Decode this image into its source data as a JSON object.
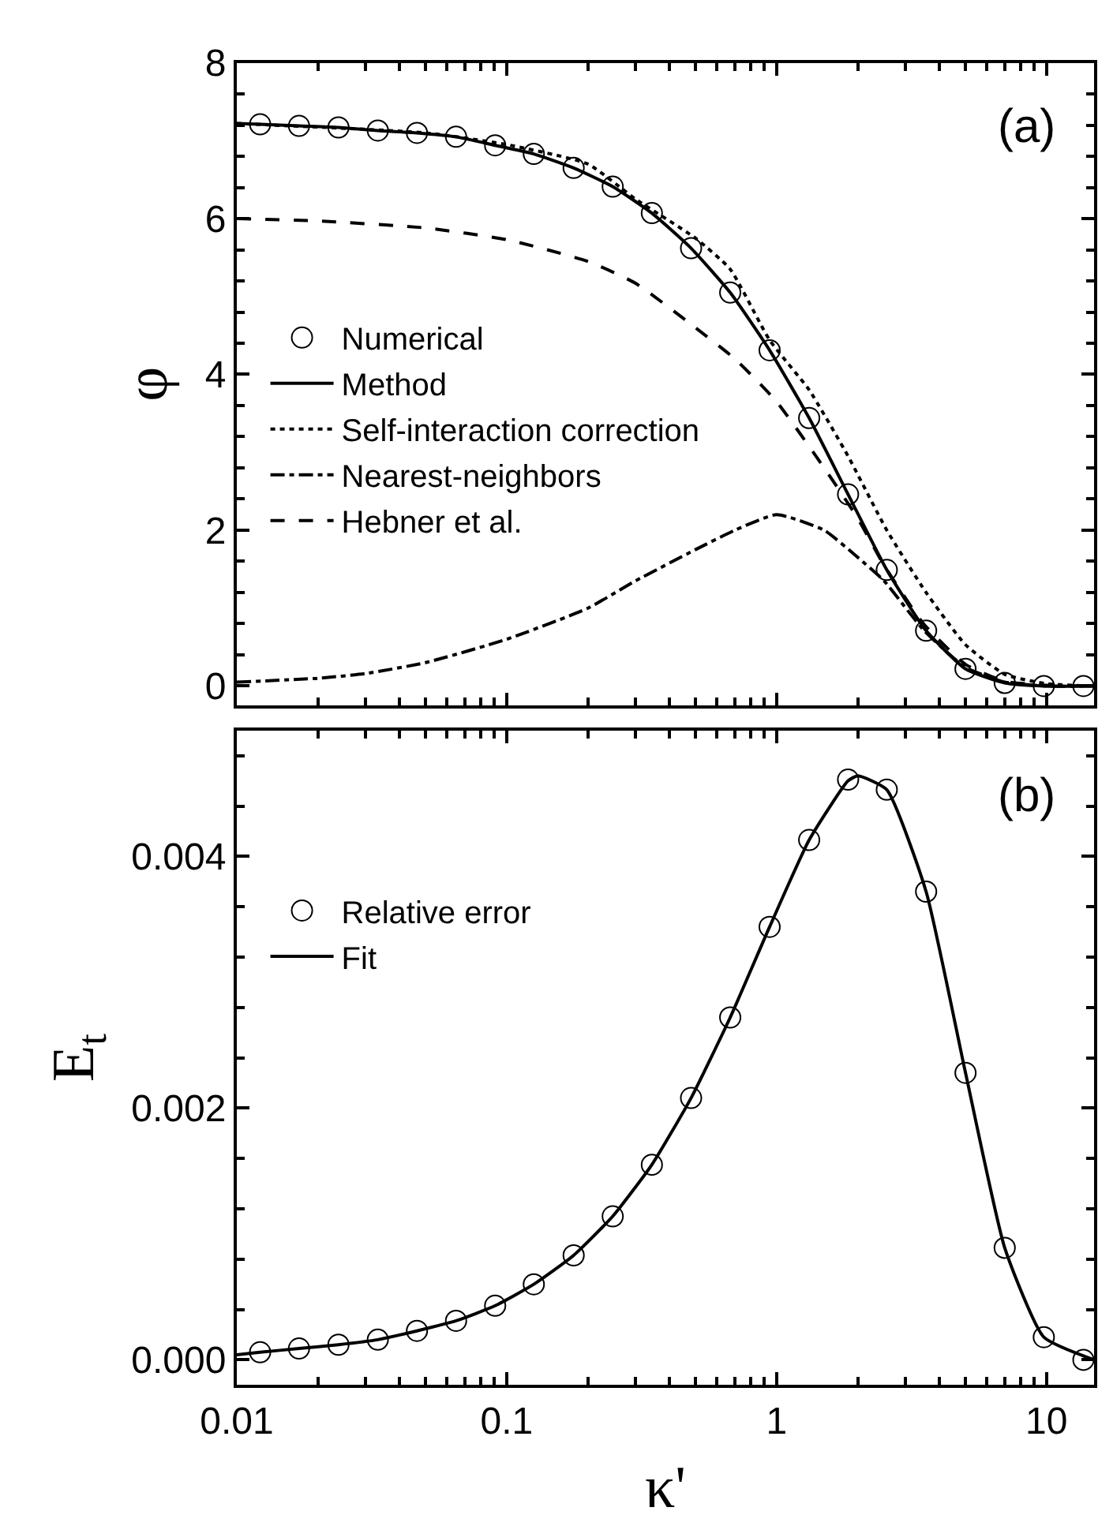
{
  "chart_data": [
    {
      "type": "line",
      "ylabel": "φ",
      "log": "x",
      "legend": "left",
      "tick_labels": "y",
      "xlim": [
        0.01,
        15
      ],
      "xticks": [
        0.01,
        0.1,
        1,
        10
      ],
      "ylim": [
        -0.25,
        8
      ],
      "yticks": [
        0,
        {
          "value": 0.4,
          "label": null
        },
        {
          "value": 0.8,
          "label": null
        },
        {
          "value": 1.2,
          "label": null
        },
        {
          "value": 1.6,
          "label": null
        },
        2,
        {
          "value": 2.4,
          "label": null
        },
        {
          "value": 2.8,
          "label": null
        },
        {
          "value": 3.2,
          "label": null
        },
        {
          "value": 3.6,
          "label": null
        },
        4,
        {
          "value": 4.4,
          "label": null
        },
        {
          "value": 4.8,
          "label": null
        },
        {
          "value": 5.2,
          "label": null
        },
        {
          "value": 5.6,
          "label": null
        },
        6,
        {
          "value": 6.4,
          "label": null
        },
        {
          "value": 6.8,
          "label": null
        },
        {
          "value": 7.2,
          "label": null
        },
        {
          "value": 7.6,
          "label": null
        },
        8
      ],
      "annotations": [
        "(a)"
      ],
      "series": [
        {
          "name": "Numerical",
          "type": "scatter",
          "marker": "circle",
          "color": "#000000",
          "x": [
            0.0122,
            0.017,
            0.0238,
            0.0333,
            0.0465,
            0.0649,
            0.0906,
            0.126,
            0.177,
            0.247,
            0.345,
            0.482,
            0.673,
            0.942,
            1.32,
            1.84,
            2.56,
            3.58,
            5.01,
            7.0,
            9.77,
            13.7
          ],
          "values": [
            7.21,
            7.19,
            7.17,
            7.13,
            7.1,
            7.05,
            6.94,
            6.83,
            6.65,
            6.41,
            6.07,
            5.62,
            5.05,
            4.31,
            3.44,
            2.46,
            1.49,
            0.71,
            0.22,
            0.04,
            0.0,
            0.0
          ]
        },
        {
          "name": "Method",
          "line_style": "solid",
          "color": "#000000",
          "x": [
            0.01,
            0.0122,
            0.017,
            0.0238,
            0.0333,
            0.0465,
            0.0649,
            0.0906,
            0.126,
            0.177,
            0.247,
            0.345,
            0.482,
            0.673,
            0.942,
            1.32,
            1.84,
            2.56,
            3.58,
            5.01,
            7.0,
            9.77,
            15
          ],
          "values": [
            7.22,
            7.21,
            7.19,
            7.17,
            7.13,
            7.1,
            7.05,
            6.94,
            6.83,
            6.65,
            6.41,
            6.07,
            5.62,
            5.05,
            4.31,
            3.44,
            2.46,
            1.49,
            0.71,
            0.22,
            0.04,
            0.0,
            0.0
          ]
        },
        {
          "name": "Self-interaction correction",
          "line_style": "dotted",
          "color": "#000000",
          "x": [
            0.01,
            0.05,
            0.1,
            0.2,
            0.3,
            0.5,
            0.673,
            0.942,
            1.32,
            1.84,
            2.56,
            3.58,
            5.01,
            7.0,
            10,
            15
          ],
          "values": [
            7.22,
            7.1,
            6.95,
            6.7,
            6.25,
            5.75,
            5.35,
            4.44,
            3.8,
            2.95,
            2.0,
            1.2,
            0.53,
            0.15,
            0.03,
            0.0
          ]
        },
        {
          "name": "Nearest-neighbors",
          "line_style": "dashdot",
          "color": "#000000",
          "x": [
            0.01,
            0.02,
            0.03,
            0.05,
            0.1,
            0.2,
            0.3,
            0.5,
            0.7,
            1.0,
            1.5,
            2.0,
            2.5,
            3.5,
            5.0,
            7.0,
            10,
            15
          ],
          "values": [
            0.05,
            0.1,
            0.16,
            0.3,
            0.6,
            1.0,
            1.35,
            1.75,
            2.0,
            2.2,
            2.0,
            1.65,
            1.35,
            0.72,
            0.24,
            0.05,
            0.0,
            0.0
          ]
        },
        {
          "name": "Hebner et al.",
          "line_style": "dashed",
          "color": "#000000",
          "x": [
            0.01,
            0.02,
            0.05,
            0.1,
            0.2,
            0.3,
            0.5,
            0.7,
            1.0,
            1.5,
            2.0,
            2.5,
            3.5,
            5.0,
            7.0,
            10,
            15
          ],
          "values": [
            6.0,
            5.97,
            5.88,
            5.73,
            5.45,
            5.17,
            4.6,
            4.2,
            3.65,
            2.8,
            2.15,
            1.55,
            0.8,
            0.28,
            0.06,
            0.01,
            0.0
          ]
        }
      ]
    },
    {
      "type": "line",
      "xlabel": "κ'",
      "ylabel": "E$_{t}$",
      "log": "x",
      "legend": "left",
      "xlim": [
        0.01,
        15
      ],
      "xticks": [
        0.01,
        0.1,
        1,
        10
      ],
      "ylim": [
        -0.0002,
        0.005
      ],
      "yticks": [
        "0.000",
        {
          "value": 0.0004,
          "label": null
        },
        {
          "value": 0.0008,
          "label": null
        },
        {
          "value": 0.0012,
          "label": null
        },
        {
          "value": 0.0016,
          "label": null
        },
        {
          "value": 0.002,
          "label": "0.002"
        },
        {
          "value": 0.0024,
          "label": null
        },
        {
          "value": 0.0028,
          "label": null
        },
        {
          "value": 0.0032,
          "label": null
        },
        {
          "value": 0.0036,
          "label": null
        },
        {
          "value": 0.004,
          "label": "0.004"
        },
        {
          "value": 0.0044,
          "label": null
        },
        {
          "value": 0.0048,
          "label": null
        }
      ],
      "annotations": [
        "(b)"
      ],
      "series": [
        {
          "name": "Relative error",
          "type": "scatter",
          "marker": "circle",
          "color": "#000000",
          "x": [
            0.0122,
            0.017,
            0.0238,
            0.0333,
            0.0465,
            0.0649,
            0.0906,
            0.126,
            0.177,
            0.247,
            0.345,
            0.482,
            0.673,
            0.942,
            1.32,
            1.84,
            2.56,
            3.58,
            5.01,
            7.0,
            9.77,
            13.7
          ],
          "values": [
            6e-05,
            9e-05,
            0.00012,
            0.00016,
            0.00023,
            0.00031,
            0.00043,
            0.0006,
            0.00083,
            0.00114,
            0.00155,
            0.00208,
            0.00272,
            0.00344,
            0.00413,
            0.00461,
            0.00453,
            0.00372,
            0.00228,
            0.00089,
            0.00018,
            0.0
          ]
        },
        {
          "name": "Fit",
          "line_style": "solid",
          "color": "#000000",
          "x": [
            0.01,
            0.0122,
            0.017,
            0.0238,
            0.0333,
            0.0465,
            0.0649,
            0.0906,
            0.126,
            0.177,
            0.247,
            0.345,
            0.482,
            0.673,
            0.942,
            1.32,
            1.84,
            2.0,
            2.56,
            3.58,
            5.01,
            7.0,
            9.77,
            15
          ],
          "values": [
            4e-05,
            6e-05,
            9e-05,
            0.00012,
            0.00016,
            0.00023,
            0.00031,
            0.00043,
            0.0006,
            0.00083,
            0.00114,
            0.00155,
            0.00208,
            0.00272,
            0.00344,
            0.00413,
            0.0046,
            0.00464,
            0.00453,
            0.00372,
            0.00228,
            0.00089,
            0.00018,
            0.0
          ]
        }
      ]
    }
  ]
}
